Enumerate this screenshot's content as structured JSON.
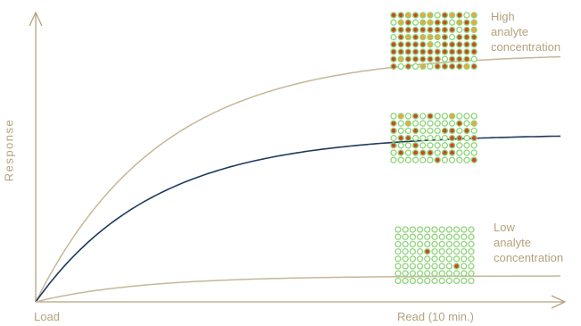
{
  "labels": {
    "y_axis": "Response",
    "x_start": "Load",
    "x_end": "Read (10 min.)",
    "high": [
      "High",
      "analyte",
      "concentration"
    ],
    "low": [
      "Low",
      "analyte",
      "concentration"
    ]
  },
  "colors": {
    "axis": "#b4a27e",
    "curve_tan": "#c6b796",
    "curve_navy": "#1f3b5e",
    "label": "#b4a27e",
    "dot_ring": "#8fd47a",
    "dot_fill_red": "#cc4a22",
    "dot_fill_orange": "#f0a53a"
  },
  "curves": [
    {
      "name": "high-concentration-curve",
      "plateau": 0.86,
      "rate": 4.2,
      "color_key": "curve_tan"
    },
    {
      "name": "medium-concentration-curve",
      "plateau": 0.58,
      "rate": 4.4,
      "color_key": "curve_navy"
    },
    {
      "name": "low-concentration-curve",
      "plateau": 0.09,
      "rate": 5.0,
      "color_key": "curve_tan"
    }
  ],
  "arrays": [
    {
      "name": "high-concentration-array",
      "rows": 8,
      "cols": 12,
      "filled_ratio": 0.85
    },
    {
      "name": "medium-concentration-array",
      "rows": 7,
      "cols": 12,
      "filled_ratio": 0.35
    },
    {
      "name": "low-concentration-array",
      "rows": 8,
      "cols": 11,
      "filled_ratio": 0.02
    }
  ]
}
